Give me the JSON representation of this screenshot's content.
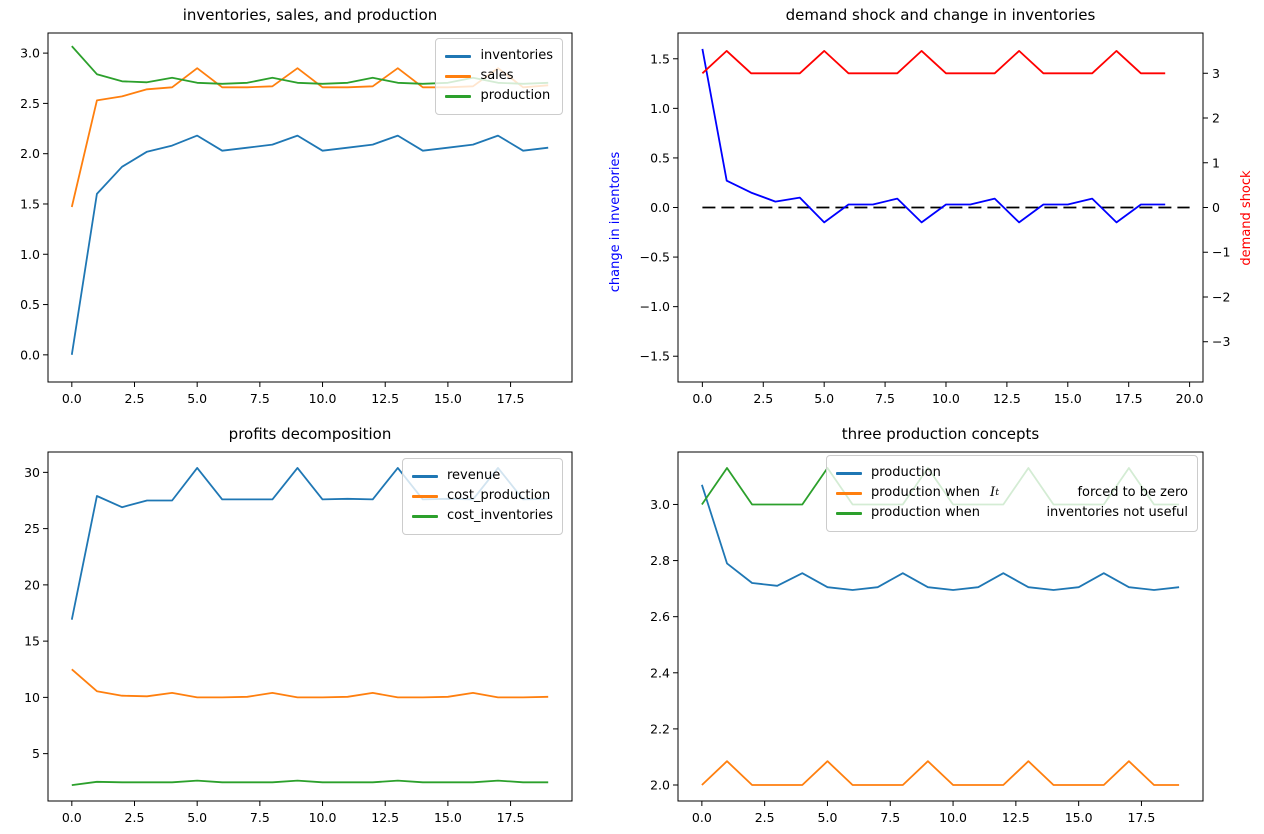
{
  "figure": {
    "background": "#ffffff",
    "accent_colors": {
      "mpl_blue": "#1f77b4",
      "mpl_orange": "#ff7f0e",
      "mpl_green": "#2ca02c",
      "pure_blue": "#0000ff",
      "pure_red": "#ff0000",
      "black": "#000000"
    }
  },
  "chart_data": [
    {
      "type": "line",
      "title": "inventories, sales, and production",
      "x": [
        0,
        1,
        2,
        3,
        4,
        5,
        6,
        7,
        8,
        9,
        10,
        11,
        12,
        13,
        14,
        15,
        16,
        17,
        18,
        19
      ],
      "xlim": [
        -0.95,
        19.95
      ],
      "ylim": [
        -0.27,
        3.2
      ],
      "grid": false,
      "xticks": {
        "values": [
          0,
          2.5,
          5,
          7.5,
          10,
          12.5,
          15,
          17.5
        ],
        "labels": [
          "0.0",
          "2.5",
          "5.0",
          "7.5",
          "10.0",
          "12.5",
          "15.0",
          "17.5"
        ]
      },
      "yticks": {
        "values": [
          0,
          0.5,
          1,
          1.5,
          2,
          2.5,
          3
        ],
        "labels": [
          "0.0",
          "0.5",
          "1.0",
          "1.5",
          "2.0",
          "2.5",
          "3.0"
        ]
      },
      "series": [
        {
          "name": "inventories",
          "color": "#1f77b4",
          "values": [
            0.0,
            1.6,
            1.87,
            2.02,
            2.08,
            2.18,
            2.03,
            2.06,
            2.09,
            2.18,
            2.03,
            2.06,
            2.09,
            2.18,
            2.03,
            2.06,
            2.09,
            2.18,
            2.03,
            2.06
          ]
        },
        {
          "name": "sales",
          "color": "#ff7f0e",
          "values": [
            1.47,
            2.53,
            2.57,
            2.64,
            2.66,
            2.85,
            2.66,
            2.66,
            2.67,
            2.85,
            2.66,
            2.66,
            2.67,
            2.85,
            2.66,
            2.66,
            2.67,
            2.85,
            2.66,
            2.68
          ]
        },
        {
          "name": "production",
          "color": "#2ca02c",
          "values": [
            3.07,
            2.79,
            2.72,
            2.71,
            2.755,
            2.705,
            2.695,
            2.705,
            2.755,
            2.705,
            2.695,
            2.705,
            2.755,
            2.705,
            2.695,
            2.705,
            2.755,
            2.705,
            2.695,
            2.705
          ]
        }
      ],
      "legend": {
        "position": "upper right",
        "entries": [
          {
            "color": "#1f77b4",
            "parts": [
              {
                "text": "inventories"
              }
            ]
          },
          {
            "color": "#ff7f0e",
            "parts": [
              {
                "text": "sales"
              }
            ]
          },
          {
            "color": "#2ca02c",
            "parts": [
              {
                "text": "production"
              }
            ]
          }
        ]
      }
    },
    {
      "type": "line",
      "title": "demand shock and change in inventories",
      "x": [
        0,
        1,
        2,
        3,
        4,
        5,
        6,
        7,
        8,
        9,
        10,
        11,
        12,
        13,
        14,
        15,
        16,
        17,
        18,
        19
      ],
      "xlim": [
        -1.0,
        20.55
      ],
      "ylim": [
        -1.76,
        1.76
      ],
      "y2lim": [
        -3.9,
        3.9
      ],
      "grid": false,
      "ylabel": {
        "text": "change in inventories",
        "color": "#0000ff"
      },
      "y2label": {
        "text": "demand shock",
        "color": "#ff0000"
      },
      "xticks": {
        "values": [
          0,
          2.5,
          5,
          7.5,
          10,
          12.5,
          15,
          17.5,
          20
        ],
        "labels": [
          "0.0",
          "2.5",
          "5.0",
          "7.5",
          "10.0",
          "12.5",
          "15.0",
          "17.5",
          "20.0"
        ]
      },
      "yticks": {
        "values": [
          -1.5,
          -1.0,
          -0.5,
          0,
          0.5,
          1.0,
          1.5
        ],
        "labels": [
          "−1.5",
          "−1.0",
          "−0.5",
          "0.0",
          "0.5",
          "1.0",
          "1.5"
        ]
      },
      "y2ticks": {
        "values": [
          -3,
          -2,
          -1,
          0,
          1,
          2,
          3
        ],
        "labels": [
          "−3",
          "−2",
          "−1",
          "0",
          "1",
          "2",
          "3"
        ]
      },
      "series": [
        {
          "name": "zero-line",
          "color": "#000000",
          "dash": true,
          "axis": "left",
          "x": [
            0,
            1,
            2,
            3,
            4,
            5,
            6,
            7,
            8,
            9,
            10,
            11,
            12,
            13,
            14,
            15,
            16,
            17,
            18,
            19,
            20
          ],
          "values": [
            0,
            0,
            0,
            0,
            0,
            0,
            0,
            0,
            0,
            0,
            0,
            0,
            0,
            0,
            0,
            0,
            0,
            0,
            0,
            0,
            0
          ]
        },
        {
          "name": "change-in-inventories",
          "color": "#0000ff",
          "axis": "left",
          "values": [
            1.6,
            0.27,
            0.15,
            0.06,
            0.1,
            -0.15,
            0.03,
            0.03,
            0.09,
            -0.15,
            0.03,
            0.03,
            0.09,
            -0.15,
            0.03,
            0.03,
            0.09,
            -0.15,
            0.03,
            0.03
          ]
        },
        {
          "name": "demand-shock",
          "color": "#ff0000",
          "axis": "right",
          "values": [
            3,
            3.5,
            3,
            3,
            3,
            3.5,
            3,
            3,
            3,
            3.5,
            3,
            3,
            3,
            3.5,
            3,
            3,
            3,
            3.5,
            3,
            3
          ]
        }
      ]
    },
    {
      "type": "line",
      "title": "profits decomposition",
      "x": [
        0,
        1,
        2,
        3,
        4,
        5,
        6,
        7,
        8,
        9,
        10,
        11,
        12,
        13,
        14,
        15,
        16,
        17,
        18,
        19
      ],
      "xlim": [
        -0.95,
        19.95
      ],
      "ylim": [
        0.79,
        31.81
      ],
      "grid": false,
      "xticks": {
        "values": [
          0,
          2.5,
          5,
          7.5,
          10,
          12.5,
          15,
          17.5
        ],
        "labels": [
          "0.0",
          "2.5",
          "5.0",
          "7.5",
          "10.0",
          "12.5",
          "15.0",
          "17.5"
        ]
      },
      "yticks": {
        "values": [
          5,
          10,
          15,
          20,
          25,
          30
        ],
        "labels": [
          "5",
          "10",
          "15",
          "20",
          "25",
          "30"
        ]
      },
      "series": [
        {
          "name": "revenue",
          "color": "#1f77b4",
          "values": [
            16.9,
            27.9,
            26.9,
            27.5,
            27.5,
            30.4,
            27.6,
            27.6,
            27.6,
            30.4,
            27.6,
            27.65,
            27.6,
            30.4,
            27.6,
            27.65,
            27.6,
            30.4,
            27.6,
            27.65
          ]
        },
        {
          "name": "cost_production",
          "color": "#ff7f0e",
          "values": [
            12.5,
            10.55,
            10.15,
            10.1,
            10.4,
            10.0,
            10.0,
            10.05,
            10.4,
            10.0,
            10.0,
            10.05,
            10.4,
            10.0,
            10.0,
            10.05,
            10.4,
            10.0,
            10.0,
            10.05
          ]
        },
        {
          "name": "cost_inventories",
          "color": "#2ca02c",
          "values": [
            2.2,
            2.5,
            2.45,
            2.45,
            2.45,
            2.6,
            2.45,
            2.45,
            2.45,
            2.6,
            2.45,
            2.45,
            2.45,
            2.6,
            2.45,
            2.45,
            2.45,
            2.6,
            2.45,
            2.45
          ]
        }
      ],
      "legend": {
        "position": "upper right",
        "entries": [
          {
            "color": "#1f77b4",
            "parts": [
              {
                "text": "revenue"
              }
            ]
          },
          {
            "color": "#ff7f0e",
            "parts": [
              {
                "text": "cost_production"
              }
            ]
          },
          {
            "color": "#2ca02c",
            "parts": [
              {
                "text": "cost_inventories"
              }
            ]
          }
        ]
      }
    },
    {
      "type": "line",
      "title": "three production concepts",
      "x": [
        0,
        1,
        2,
        3,
        4,
        5,
        6,
        7,
        8,
        9,
        10,
        11,
        12,
        13,
        14,
        15,
        16,
        17,
        18,
        19
      ],
      "xlim": [
        -0.95,
        19.95
      ],
      "ylim": [
        1.943,
        3.187
      ],
      "grid": false,
      "xticks": {
        "values": [
          0,
          2.5,
          5,
          7.5,
          10,
          12.5,
          15,
          17.5
        ],
        "labels": [
          "0.0",
          "2.5",
          "5.0",
          "7.5",
          "10.0",
          "12.5",
          "15.0",
          "17.5"
        ]
      },
      "yticks": {
        "values": [
          2.0,
          2.2,
          2.4,
          2.6,
          2.8,
          3.0
        ],
        "labels": [
          "2.0",
          "2.2",
          "2.4",
          "2.6",
          "2.8",
          "3.0"
        ]
      },
      "series": [
        {
          "name": "production",
          "color": "#1f77b4",
          "values": [
            3.07,
            2.79,
            2.72,
            2.71,
            2.755,
            2.705,
            2.695,
            2.705,
            2.755,
            2.705,
            2.695,
            2.705,
            2.755,
            2.705,
            2.695,
            2.705,
            2.755,
            2.705,
            2.695,
            2.705
          ]
        },
        {
          "name": "production-when-It-forced-to-be-zero",
          "color": "#ff7f0e",
          "values": [
            2.0,
            2.085,
            2.0,
            2.0,
            2.0,
            2.085,
            2.0,
            2.0,
            2.0,
            2.085,
            2.0,
            2.0,
            2.0,
            2.085,
            2.0,
            2.0,
            2.0,
            2.085,
            2.0,
            2.0
          ]
        },
        {
          "name": "production-when-inventories-not-useful",
          "color": "#2ca02c",
          "values": [
            3.0,
            3.13,
            3.0,
            3.0,
            3.0,
            3.13,
            3.0,
            3.0,
            3.0,
            3.13,
            3.0,
            3.0,
            3.0,
            3.13,
            3.0,
            3.0,
            3.0,
            3.13,
            3.0,
            3.0
          ]
        }
      ],
      "legend": {
        "position": "upper right",
        "entries": [
          {
            "color": "#1f77b4",
            "parts": [
              {
                "text": "production"
              }
            ]
          },
          {
            "color": "#ff7f0e",
            "parts": [
              {
                "text": "production when"
              },
              {
                "text": "I",
                "style": "italic"
              },
              {
                "text": "t",
                "style": "sub"
              },
              {
                "text": "forced to be zero",
                "align": "right"
              }
            ]
          },
          {
            "color": "#2ca02c",
            "parts": [
              {
                "text": "production when"
              },
              {
                "text": "inventories not useful",
                "align": "right"
              }
            ]
          }
        ]
      }
    }
  ]
}
